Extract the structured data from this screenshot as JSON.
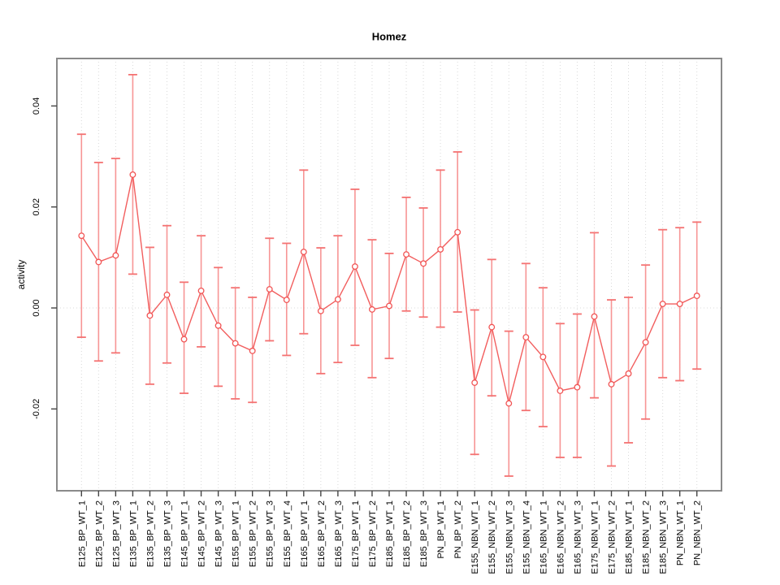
{
  "window": {
    "background": "#ffffff"
  },
  "chart_data": {
    "type": "line",
    "title": "Homez",
    "xlabel": "",
    "ylabel": "activity",
    "error_bars": true,
    "legend": "none",
    "grid": "dotted vertical line at every category; dotted horizontal line at y=0",
    "ylim": [
      -0.0362,
      0.0494
    ],
    "xlim": [
      -0.44,
      38.44
    ],
    "yticks": [
      -0.02,
      0.0,
      0.02,
      0.04
    ],
    "ytick_labels": [
      "-0.02",
      "0.00",
      "0.02",
      "0.04"
    ],
    "categories": [
      "E125_BP_WT_1",
      "E125_BP_WT_2",
      "E125_BP_WT_3",
      "E135_BP_WT_1",
      "E135_BP_WT_2",
      "E135_BP_WT_3",
      "E145_BP_WT_1",
      "E145_BP_WT_2",
      "E145_BP_WT_3",
      "E155_BP_WT_1",
      "E155_BP_WT_2",
      "E155_BP_WT_3",
      "E155_BP_WT_4",
      "E165_BP_WT_1",
      "E165_BP_WT_2",
      "E165_BP_WT_3",
      "E175_BP_WT_1",
      "E175_BP_WT_2",
      "E185_BP_WT_1",
      "E185_BP_WT_2",
      "E185_BP_WT_3",
      "PN_BP_WT_1",
      "PN_BP_WT_2",
      "E155_NBN_WT_1",
      "E155_NBN_WT_2",
      "E155_NBN_WT_3",
      "E155_NBN_WT_4",
      "E165_NBN_WT_1",
      "E165_NBN_WT_2",
      "E165_NBN_WT_3",
      "E175_NBN_WT_1",
      "E175_NBN_WT_2",
      "E185_NBN_WT_1",
      "E185_NBN_WT_2",
      "E185_NBN_WT_3",
      "PN_NBN_WT_1",
      "PN_NBN_WT_2"
    ],
    "series": [
      {
        "name": "activity",
        "marker": "open-circle",
        "values": [
          0.0143,
          0.0091,
          0.0104,
          0.0264,
          -0.0015,
          0.0026,
          -0.0062,
          0.0034,
          -0.0035,
          -0.007,
          -0.0085,
          0.0037,
          0.0016,
          0.0111,
          -0.0006,
          0.0017,
          0.0082,
          -0.0003,
          0.0004,
          0.0106,
          0.0088,
          0.0116,
          0.015,
          -0.0148,
          -0.0038,
          -0.0189,
          -0.0058,
          -0.0097,
          -0.0164,
          -0.0157,
          -0.0017,
          -0.0151,
          -0.013,
          -0.0068,
          0.0008,
          0.0008,
          0.0024
        ],
        "upper": [
          0.0344,
          0.0288,
          0.0296,
          0.0462,
          0.012,
          0.0163,
          0.0051,
          0.0143,
          0.008,
          0.004,
          0.0021,
          0.0138,
          0.0128,
          0.0273,
          0.0119,
          0.0143,
          0.0235,
          0.0135,
          0.0108,
          0.0219,
          0.0198,
          0.0273,
          0.0309,
          -0.0004,
          0.0096,
          -0.0046,
          0.0088,
          0.004,
          -0.0031,
          -0.0012,
          0.0149,
          0.0016,
          0.0021,
          0.0085,
          0.0155,
          0.0159,
          0.017
        ],
        "lower": [
          -0.0058,
          -0.0105,
          -0.0089,
          0.0067,
          -0.0151,
          -0.0109,
          -0.0169,
          -0.0077,
          -0.0155,
          -0.018,
          -0.0187,
          -0.0065,
          -0.0094,
          -0.0051,
          -0.013,
          -0.0108,
          -0.0074,
          -0.0138,
          -0.01,
          -0.0006,
          -0.0018,
          -0.0038,
          -0.0008,
          -0.029,
          -0.0174,
          -0.0333,
          -0.0203,
          -0.0235,
          -0.0296,
          -0.0296,
          -0.0178,
          -0.0313,
          -0.0267,
          -0.022,
          -0.0138,
          -0.0144,
          -0.0121
        ]
      }
    ]
  },
  "colors": {
    "series_line": "#f25e5e",
    "point_stroke": "#f15555",
    "point_fill": "#ffffff",
    "error_bar": "#f79595",
    "error_cap": "#f47272",
    "frame": "#8a8a8a",
    "grid": "#d9d9d9",
    "tick": "#444444",
    "text": "#000000"
  }
}
